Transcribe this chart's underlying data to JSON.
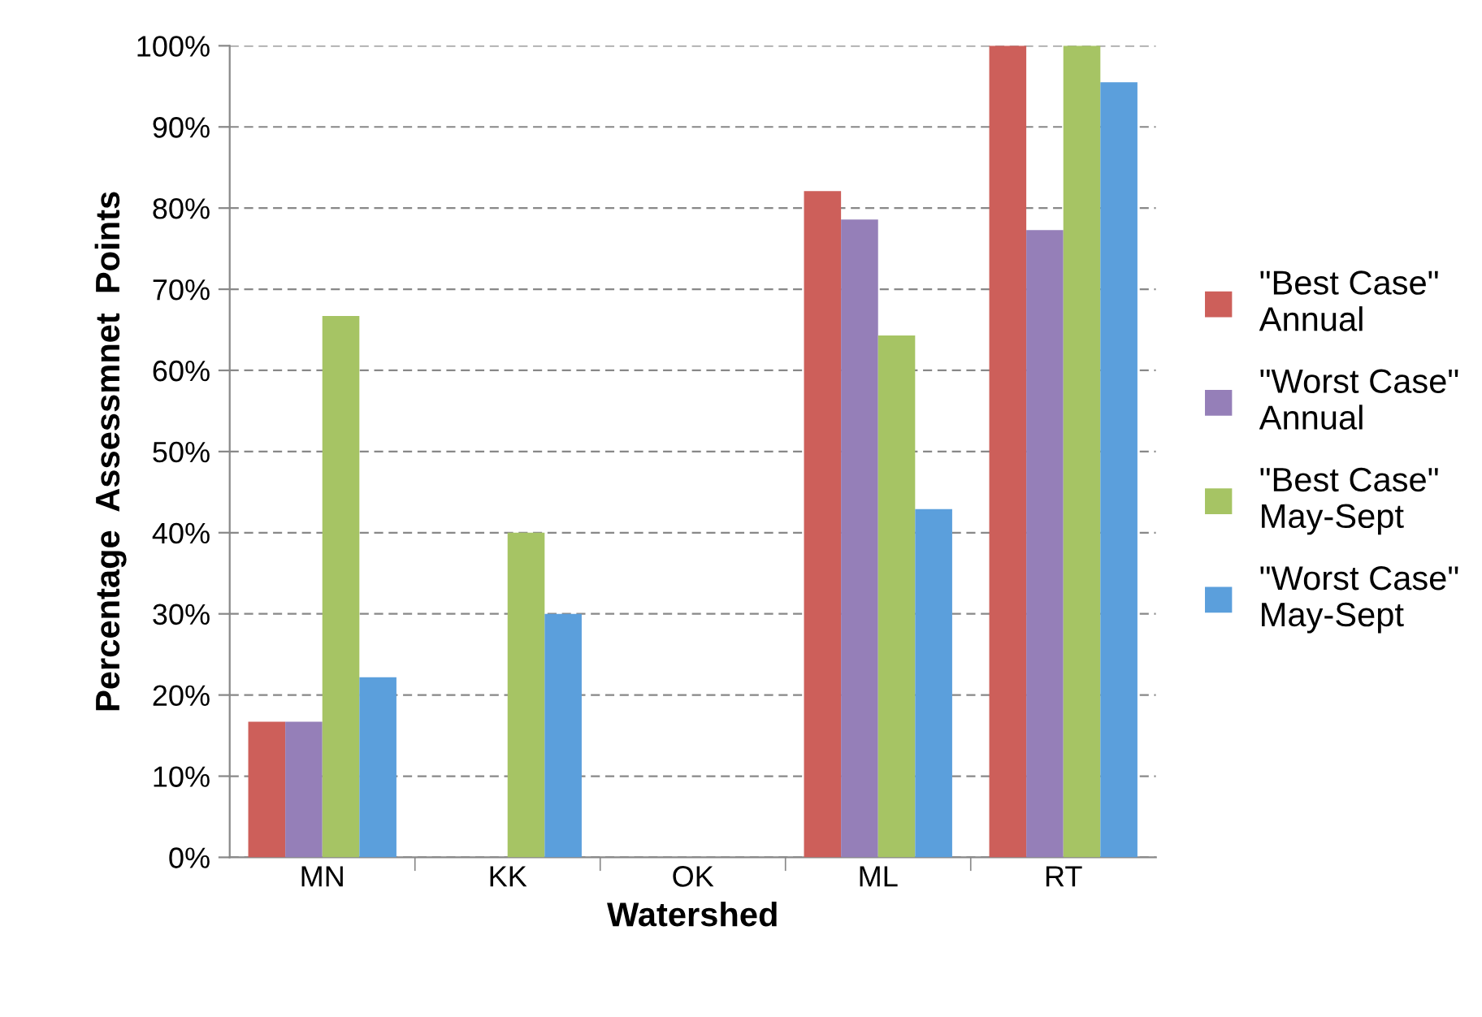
{
  "chart_data": {
    "type": "bar",
    "xlabel": "Watershed",
    "ylabel": "Percentage  Assessmnet  Points",
    "categories": [
      "MN",
      "KK",
      "OK",
      "ML",
      "RT"
    ],
    "series": [
      {
        "name": "\"Best Case\"\nAnnual",
        "color": "#cd5f5a",
        "values": [
          16.7,
          0,
          0,
          82.1,
          100
        ]
      },
      {
        "name": "\"Worst Case\"\nAnnual",
        "color": "#957fb8",
        "values": [
          16.7,
          0,
          0,
          78.6,
          77.3
        ]
      },
      {
        "name": "\"Best Case\"\nMay-Sept",
        "color": "#a6c464",
        "values": [
          66.7,
          40,
          0,
          64.3,
          100
        ]
      },
      {
        "name": "\"Worst Case\"\nMay-Sept",
        "color": "#5b9fdc",
        "values": [
          22.2,
          30,
          0,
          42.9,
          95.5
        ]
      }
    ],
    "ylim": [
      0,
      100
    ],
    "yticks": [
      {
        "value": 0,
        "label": "0%"
      },
      {
        "value": 10,
        "label": "10%"
      },
      {
        "value": 20,
        "label": "20%"
      },
      {
        "value": 30,
        "label": "30%"
      },
      {
        "value": 40,
        "label": "40%"
      },
      {
        "value": 50,
        "label": "50%"
      },
      {
        "value": 60,
        "label": "60%"
      },
      {
        "value": 70,
        "label": "70%"
      },
      {
        "value": 80,
        "label": "80%"
      },
      {
        "value": 90,
        "label": "90%"
      },
      {
        "value": 100,
        "label": "100%"
      }
    ],
    "grid": "y",
    "legend": "right"
  }
}
